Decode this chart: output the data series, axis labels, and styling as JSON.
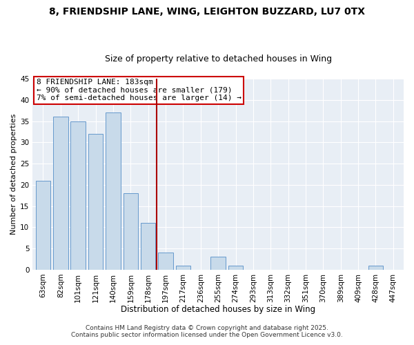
{
  "title1": "8, FRIENDSHIP LANE, WING, LEIGHTON BUZZARD, LU7 0TX",
  "title2": "Size of property relative to detached houses in Wing",
  "xlabel": "Distribution of detached houses by size in Wing",
  "ylabel": "Number of detached properties",
  "categories": [
    "63sqm",
    "82sqm",
    "101sqm",
    "121sqm",
    "140sqm",
    "159sqm",
    "178sqm",
    "197sqm",
    "217sqm",
    "236sqm",
    "255sqm",
    "274sqm",
    "293sqm",
    "313sqm",
    "332sqm",
    "351sqm",
    "370sqm",
    "389sqm",
    "409sqm",
    "428sqm",
    "447sqm"
  ],
  "values": [
    21,
    36,
    35,
    32,
    37,
    18,
    11,
    4,
    1,
    0,
    3,
    1,
    0,
    0,
    0,
    0,
    0,
    0,
    0,
    1,
    0
  ],
  "bar_color": "#c8daea",
  "bar_edge_color": "#6699cc",
  "vline_index": 6,
  "vline_color": "#aa0000",
  "annotation_line1": "8 FRIENDSHIP LANE: 183sqm",
  "annotation_line2": "← 90% of detached houses are smaller (179)",
  "annotation_line3": "7% of semi-detached houses are larger (14) →",
  "annotation_box_edge": "#cc0000",
  "ylim": [
    0,
    45
  ],
  "yticks": [
    0,
    5,
    10,
    15,
    20,
    25,
    30,
    35,
    40,
    45
  ],
  "bg_color": "#ffffff",
  "plot_bg_color": "#e8eef5",
  "grid_color": "#ffffff",
  "footer1": "Contains HM Land Registry data © Crown copyright and database right 2025.",
  "footer2": "Contains public sector information licensed under the Open Government Licence v3.0.",
  "title1_fontsize": 10,
  "title2_fontsize": 9,
  "xlabel_fontsize": 8.5,
  "ylabel_fontsize": 8,
  "tick_fontsize": 7.5,
  "annotation_fontsize": 8,
  "footer_fontsize": 6.5
}
